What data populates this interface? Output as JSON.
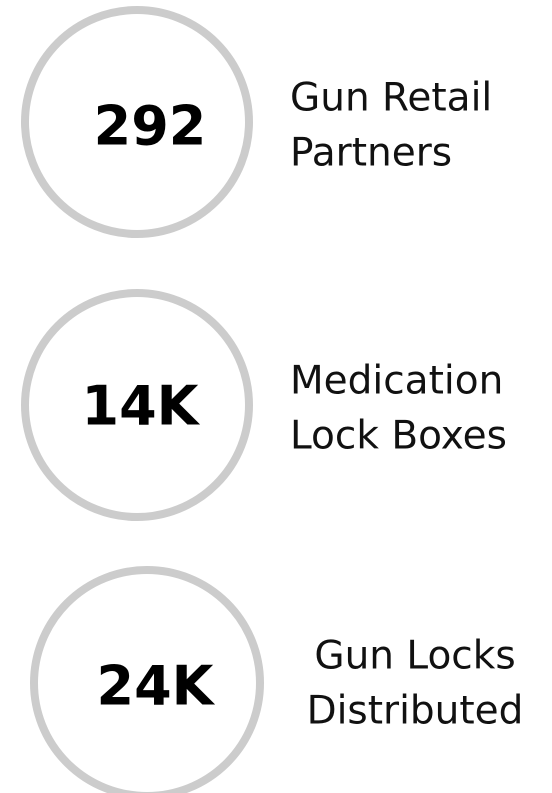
{
  "stats": [
    {
      "value": "292",
      "label": [
        "Gun Retail",
        "Partners"
      ]
    },
    {
      "value": "14K",
      "label": [
        "Medication",
        "Lock Boxes"
      ]
    },
    {
      "value": "24K",
      "label": [
        "Gun Locks",
        "Distributed"
      ]
    }
  ]
}
